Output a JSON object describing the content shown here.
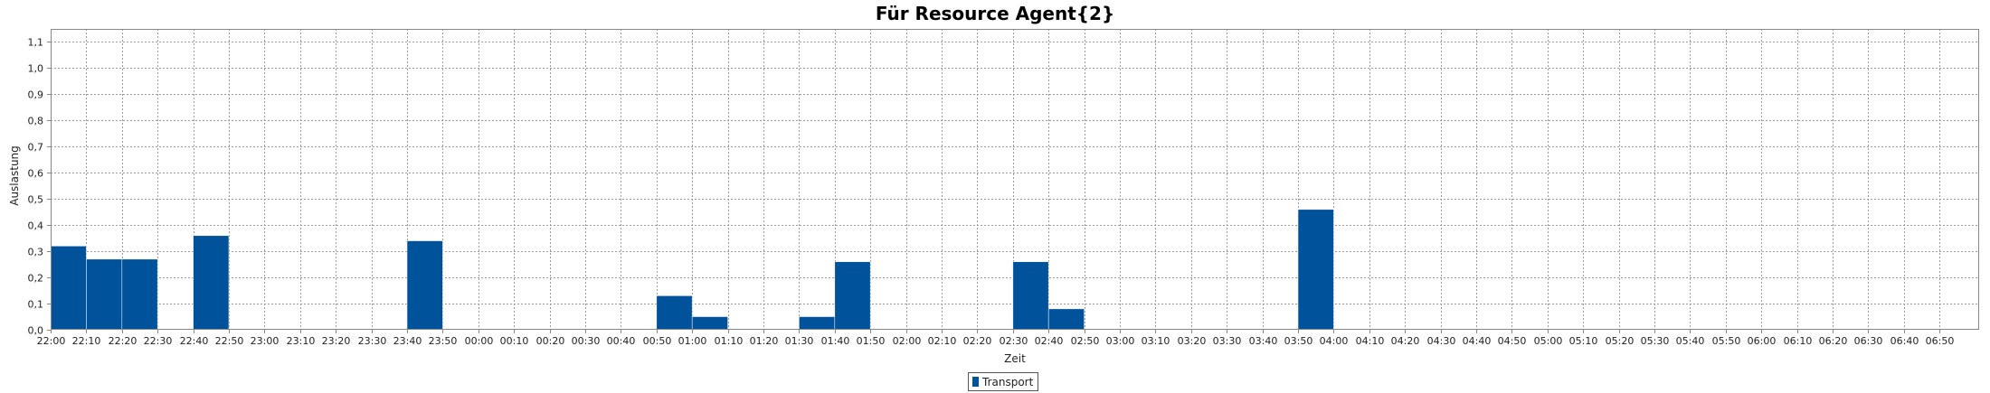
{
  "chart_data": {
    "type": "bar",
    "title": "Für Resource Agent{2}",
    "xlabel": "Zeit",
    "ylabel": "Auslastung",
    "ylim": [
      0,
      1.15
    ],
    "y_ticks": [
      "0,0",
      "0,1",
      "0,2",
      "0,3",
      "0,4",
      "0,5",
      "0,6",
      "0,7",
      "0,8",
      "0,9",
      "1,0",
      "1,1"
    ],
    "x_ticks": [
      "22:00",
      "22:10",
      "22:20",
      "22:30",
      "22:40",
      "22:50",
      "23:00",
      "23:10",
      "23:20",
      "23:30",
      "23:40",
      "23:50",
      "00:00",
      "00:10",
      "00:20",
      "00:30",
      "00:40",
      "00:50",
      "01:00",
      "01:10",
      "01:20",
      "01:30",
      "01:40",
      "01:50",
      "02:00",
      "02:10",
      "02:20",
      "02:30",
      "02:40",
      "02:50",
      "03:00",
      "03:10",
      "03:20",
      "03:30",
      "03:40",
      "03:50",
      "04:00",
      "04:10",
      "04:20",
      "04:30",
      "04:40",
      "04:50",
      "05:00",
      "05:10",
      "05:20",
      "05:30",
      "05:40",
      "05:50",
      "06:00",
      "06:10",
      "06:20",
      "06:30",
      "06:40",
      "06:50"
    ],
    "grid": true,
    "legend_position": "bottom-center",
    "series": [
      {
        "name": "Transport",
        "color": "#00529b",
        "values": [
          0.32,
          0.27,
          0.27,
          0,
          0.36,
          0,
          0,
          0,
          0,
          0,
          0.34,
          0,
          0,
          0,
          0,
          0,
          0,
          0.13,
          0.05,
          0,
          0,
          0.05,
          0.26,
          0,
          0,
          0,
          0,
          0.26,
          0.08,
          0,
          0,
          0,
          0,
          0,
          0,
          0.46,
          0,
          0,
          0,
          0,
          0,
          0,
          0,
          0,
          0,
          0,
          0,
          0,
          0,
          0,
          0,
          0,
          0,
          0
        ]
      }
    ]
  }
}
